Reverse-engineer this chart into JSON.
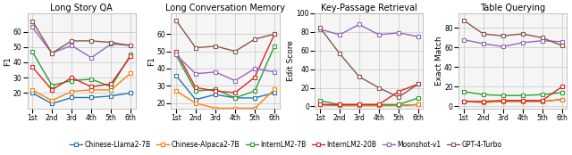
{
  "x_labels": [
    "1st",
    "2nd",
    "3rd",
    "4th",
    "5th",
    "6th"
  ],
  "subplots": [
    {
      "title": "Long Story QA",
      "ylabel": "F1",
      "ylim": [
        10,
        72
      ],
      "yticks": [
        20,
        30,
        40,
        50,
        60
      ],
      "series": {
        "Chinese-Llama2-7B": [
          20,
          13,
          17,
          17,
          18,
          20
        ],
        "Chinese-Alpaca2-7B": [
          22,
          15,
          21,
          22,
          22,
          33
        ],
        "InternLM2-7B": [
          47,
          25,
          28,
          29,
          24,
          45
        ],
        "InternLM2-20B": [
          37,
          22,
          30,
          24,
          26,
          44
        ],
        "Moonshot-v1": [
          63,
          46,
          51,
          43,
          52,
          51
        ],
        "GPT-4-Turbo": [
          67,
          46,
          54,
          54,
          53,
          51
        ]
      }
    },
    {
      "title": "Long Conversation Memory",
      "ylabel": "F1",
      "ylim": [
        17,
        72
      ],
      "yticks": [
        20,
        30,
        40,
        50,
        60
      ],
      "series": {
        "Chinese-Llama2-7B": [
          36,
          22,
          25,
          23,
          23,
          26
        ],
        "Chinese-Alpaca2-7B": [
          27,
          20,
          17,
          17,
          17,
          28
        ],
        "InternLM2-7B": [
          48,
          27,
          28,
          23,
          27,
          53
        ],
        "InternLM2-20B": [
          50,
          29,
          27,
          26,
          35,
          60
        ],
        "Moonshot-v1": [
          48,
          37,
          38,
          33,
          40,
          38
        ],
        "GPT-4-Turbo": [
          68,
          52,
          53,
          50,
          57,
          60
        ]
      }
    },
    {
      "title": "Key-Passage Retrieval",
      "ylabel": "Edit Score",
      "ylim": [
        -2,
        100
      ],
      "yticks": [
        0,
        20,
        40,
        60,
        80,
        100
      ],
      "series": {
        "Chinese-Llama2-7B": [
          2,
          1,
          1,
          1,
          1,
          2
        ],
        "Chinese-Alpaca2-7B": [
          2,
          1,
          1,
          1,
          1,
          2
        ],
        "InternLM2-7B": [
          6,
          2,
          2,
          2,
          2,
          9
        ],
        "InternLM2-20B": [
          2,
          2,
          2,
          2,
          16,
          24
        ],
        "Moonshot-v1": [
          83,
          77,
          88,
          77,
          79,
          75
        ],
        "GPT-4-Turbo": [
          85,
          57,
          32,
          20,
          10,
          24
        ]
      }
    },
    {
      "title": "Table Querying",
      "ylabel": "Exact Match",
      "ylim": [
        -2,
        95
      ],
      "yticks": [
        0,
        20,
        40,
        60,
        80
      ],
      "series": {
        "Chinese-Llama2-7B": [
          5,
          4,
          5,
          5,
          5,
          7
        ],
        "Chinese-Alpaca2-7B": [
          5,
          4,
          5,
          5,
          5,
          7
        ],
        "InternLM2-7B": [
          15,
          12,
          11,
          11,
          12,
          14
        ],
        "InternLM2-20B": [
          5,
          5,
          6,
          6,
          6,
          20
        ],
        "Moonshot-v1": [
          68,
          64,
          61,
          65,
          67,
          66
        ],
        "GPT-4-Turbo": [
          88,
          74,
          72,
          74,
          70,
          62
        ]
      }
    }
  ],
  "models": [
    "Chinese-Llama2-7B",
    "Chinese-Alpaca2-7B",
    "InternLM2-7B",
    "InternLM2-20B",
    "Moonshot-v1",
    "GPT-4-Turbo"
  ],
  "colors": {
    "Chinese-Llama2-7B": "#1f77b4",
    "Chinese-Alpaca2-7B": "#ff7f0e",
    "InternLM2-7B": "#2ca02c",
    "InternLM2-20B": "#d62728",
    "Moonshot-v1": "#9467bd",
    "GPT-4-Turbo": "#8c564b"
  },
  "marker": "s",
  "markersize": 2.5,
  "linewidth": 1.0,
  "legend_fontsize": 5.5,
  "title_fontsize": 7,
  "tick_fontsize": 5.5,
  "label_fontsize": 6.5
}
